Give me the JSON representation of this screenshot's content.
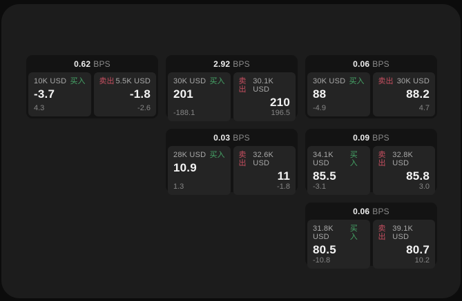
{
  "labels": {
    "bps_unit": "BPS",
    "buy": "买入",
    "sell": "卖出"
  },
  "colors": {
    "buy_accent": "#46a567",
    "sell_accent": "#c64f60",
    "panel_background": "#1c1c1c",
    "card_background": "#131313",
    "tile_background": "#242424"
  },
  "cards": [
    {
      "bps": "0.62",
      "buy": {
        "size": "10K USD",
        "price": "-3.7",
        "sub": "4.3"
      },
      "sell": {
        "size": "5.5K USD",
        "price": "-1.8",
        "sub": "-2.6"
      }
    },
    {
      "bps": "2.92",
      "buy": {
        "size": "30K USD",
        "price": "201",
        "sub": "-188.1"
      },
      "sell": {
        "size": "30.1K USD",
        "price": "210",
        "sub": "196.5"
      }
    },
    {
      "bps": "0.06",
      "buy": {
        "size": "30K USD",
        "price": "88",
        "sub": "-4.9"
      },
      "sell": {
        "size": "30K USD",
        "price": "88.2",
        "sub": "4.7"
      }
    },
    {
      "bps": "0.03",
      "buy": {
        "size": "28K USD",
        "price": "10.9",
        "sub": "1.3"
      },
      "sell": {
        "size": "32.6K USD",
        "price": "11",
        "sub": "-1.8"
      }
    },
    {
      "bps": "0.09",
      "buy": {
        "size": "34.1K USD",
        "price": "85.5",
        "sub": "-3.1"
      },
      "sell": {
        "size": "32.8K USD",
        "price": "85.8",
        "sub": "3.0"
      }
    },
    {
      "bps": "0.06",
      "buy": {
        "size": "31.8K USD",
        "price": "80.5",
        "sub": "-10.8"
      },
      "sell": {
        "size": "39.1K USD",
        "price": "80.7",
        "sub": "10.2"
      }
    }
  ]
}
